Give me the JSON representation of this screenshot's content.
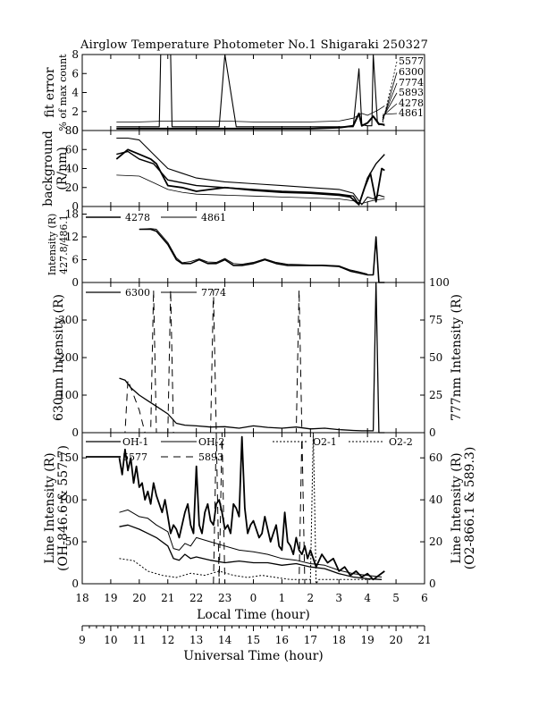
{
  "title": "Airglow Temperature Photometer No.1  Shigaraki  250327",
  "chart_data": [
    {
      "panel": "fit_error",
      "type": "line",
      "ylabel_lines": [
        "fit error",
        "% of max count"
      ],
      "ylim": [
        0,
        8
      ],
      "yticks": [
        "0",
        "2",
        "4",
        "6",
        "8"
      ],
      "legend_labels": [
        "5577",
        "6300",
        "7774",
        "5893",
        "4278",
        "4861"
      ],
      "series": [
        {
          "width": 1.1,
          "x": [
            19.2,
            20.0,
            20.7,
            20.75,
            21.1,
            21.15,
            21.6,
            21.9,
            22.0,
            22.8,
            23.0,
            23.4,
            23.6,
            23.9,
            24.0,
            25.0,
            26.0,
            27.0,
            27.2,
            27.5,
            27.7,
            27.8,
            28.0,
            28.15,
            28.2,
            28.35,
            28.4,
            28.5,
            28.6
          ],
          "y": [
            0.4,
            0.4,
            0.4,
            8.0,
            8.0,
            0.4,
            0.4,
            0.4,
            0.4,
            0.4,
            8.0,
            0.4,
            0.4,
            0.4,
            0.4,
            0.4,
            0.4,
            0.4,
            0.4,
            0.4,
            6.5,
            0.6,
            0.5,
            0.5,
            8.0,
            0.8,
            0.6,
            0.7,
            0.5
          ]
        },
        {
          "width": 0.8,
          "x": [
            19.2,
            20.0,
            21.0,
            22.0,
            23.0,
            24.0,
            25.0,
            26.0,
            27.0,
            27.5,
            27.8,
            28.0,
            28.2,
            28.4,
            28.6
          ],
          "y": [
            0.9,
            0.9,
            1.0,
            1.0,
            1.0,
            0.9,
            0.9,
            0.9,
            1.0,
            1.3,
            1.8,
            1.6,
            1.9,
            2.2,
            2.6
          ]
        },
        {
          "width": 2.0,
          "x": [
            19.2,
            20.0,
            21.0,
            22.0,
            23.0,
            24.0,
            25.0,
            26.0,
            27.0,
            27.5,
            27.7,
            27.8,
            28.0,
            28.2,
            28.4,
            28.6
          ],
          "y": [
            0.2,
            0.2,
            0.2,
            0.2,
            0.2,
            0.2,
            0.2,
            0.2,
            0.3,
            0.5,
            1.8,
            0.5,
            0.8,
            1.5,
            0.7,
            0.6
          ]
        }
      ]
    },
    {
      "panel": "background",
      "type": "line",
      "ylabel_lines": [
        "background",
        "(R/nm)"
      ],
      "ylim": [
        0,
        80
      ],
      "yticks": [
        "0",
        "20",
        "40",
        "60",
        "80"
      ],
      "series": [
        {
          "width": 1.1,
          "x": [
            19.2,
            19.6,
            20.0,
            20.5,
            21.0,
            21.5,
            22.0,
            22.5,
            23.0,
            24.0,
            25.0,
            26.0,
            27.0,
            27.5,
            27.8,
            28.0,
            28.2,
            28.4,
            28.6
          ],
          "y": [
            72,
            72,
            70,
            55,
            40,
            35,
            30,
            28,
            26,
            24,
            22,
            20,
            18,
            14,
            2,
            10,
            8,
            12,
            10
          ]
        },
        {
          "width": 1.8,
          "x": [
            19.2,
            19.6,
            20.0,
            20.4,
            20.6,
            21.0,
            21.5,
            22.0,
            22.5,
            23.0,
            24.0,
            25.0,
            26.0,
            27.0,
            27.4,
            27.7,
            27.9,
            28.1,
            28.3,
            28.5,
            28.6
          ],
          "y": [
            50,
            60,
            55,
            50,
            45,
            22,
            20,
            16,
            18,
            20,
            17,
            15,
            14,
            12,
            10,
            2,
            20,
            35,
            5,
            40,
            38
          ]
        },
        {
          "width": 0.8,
          "x": [
            19.2,
            20.0,
            20.5,
            21.0,
            21.5,
            22.0,
            23.0,
            24.0,
            25.0,
            26.0,
            27.0,
            27.5,
            27.8,
            28.0,
            28.3,
            28.6
          ],
          "y": [
            33,
            32,
            25,
            18,
            15,
            13,
            12,
            11,
            10,
            9,
            8,
            6,
            3,
            5,
            7,
            8
          ]
        },
        {
          "width": 1.4,
          "x": [
            19.2,
            19.6,
            20.0,
            20.5,
            21.0,
            21.5,
            22.0,
            23.0,
            24.0,
            25.0,
            26.0,
            27.0,
            27.5,
            27.7,
            28.0,
            28.3,
            28.6
          ],
          "y": [
            55,
            58,
            50,
            45,
            28,
            25,
            22,
            20,
            18,
            16,
            15,
            13,
            11,
            2,
            30,
            45,
            55
          ]
        }
      ]
    },
    {
      "panel": "intensity_427_486",
      "type": "line",
      "ylabel_lines": [
        "Intensity (R)",
        "427.8/486.1"
      ],
      "ylim": [
        0,
        20
      ],
      "yticks": [
        "0",
        "6",
        "12",
        "18"
      ],
      "legend_labels": [
        "4278",
        "4861"
      ],
      "series": [
        {
          "name": "4278",
          "width": 1.6,
          "x": [
            20.0,
            20.4,
            20.6,
            21.0,
            21.3,
            21.5,
            21.8,
            22.1,
            22.4,
            22.7,
            23.0,
            23.3,
            23.6,
            24.0,
            24.4,
            24.8,
            25.2,
            25.6,
            26.0,
            26.4,
            27.0,
            27.4,
            27.7,
            28.0,
            28.2,
            28.3,
            28.4,
            28.5,
            28.6
          ],
          "y": [
            14,
            14,
            13.5,
            10,
            6,
            5,
            5,
            6,
            5,
            5,
            6,
            4.5,
            4.5,
            5,
            6,
            5,
            4.5,
            4.5,
            4.5,
            4.5,
            4.2,
            3,
            2.5,
            2,
            2,
            12,
            0,
            0,
            0
          ]
        },
        {
          "name": "4861",
          "width": 0.9,
          "x": [
            20.0,
            20.4,
            20.6,
            21.0,
            21.3,
            21.5,
            21.8,
            22.1,
            22.4,
            22.7,
            23.0,
            23.3,
            23.6,
            24.0,
            24.4,
            24.8,
            25.2,
            25.6,
            26.0,
            26.4,
            27.0,
            27.4,
            27.7,
            28.0
          ],
          "y": [
            14,
            14.2,
            14,
            10.5,
            6.5,
            5.2,
            5.5,
            6.2,
            5.4,
            5.3,
            6.3,
            5.0,
            4.8,
            5.3,
            6.2,
            5.3,
            4.8,
            4.7,
            4.6,
            4.6,
            4.4,
            3.3,
            2.8,
            2.2
          ]
        }
      ]
    },
    {
      "panel": "intensity_630_777",
      "type": "line",
      "ylabel_left": "630nm Intensity (R)",
      "ylabel_right": "777nm Intensity (R)",
      "ylim_left": [
        0,
        400
      ],
      "ylim_right": [
        0,
        100
      ],
      "yticks_left": [
        "0",
        "100",
        "200",
        "300"
      ],
      "yticks_right": [
        "0",
        "25",
        "50",
        "75",
        "100"
      ],
      "legend_labels": [
        "6300",
        "7774"
      ],
      "series": [
        {
          "name": "6300",
          "width": 1.3,
          "x": [
            19.3,
            19.5,
            19.7,
            20.0,
            20.3,
            20.6,
            21.0,
            21.3,
            21.6,
            22.0,
            22.5,
            23.0,
            23.5,
            24.0,
            24.5,
            25.0,
            25.5,
            26.0,
            26.5,
            27.0,
            27.5,
            27.8,
            28.0,
            28.2,
            28.3,
            28.4,
            28.5,
            28.6
          ],
          "y": [
            145,
            140,
            120,
            100,
            85,
            70,
            50,
            25,
            20,
            18,
            15,
            16,
            12,
            18,
            14,
            12,
            15,
            10,
            12,
            8,
            6,
            5,
            5,
            5,
            400,
            0,
            0,
            0
          ]
        },
        {
          "name": "7774",
          "width": 1.0,
          "dash": "8,6",
          "x": [
            19.3,
            19.5,
            19.6,
            19.8,
            20.0,
            20.2,
            20.4,
            20.5,
            20.6,
            21.0,
            21.1,
            21.2,
            21.5,
            22.0,
            22.5,
            22.6,
            22.7,
            23.0,
            24.0,
            24.5,
            25.0,
            25.5,
            25.6,
            25.7,
            26.0,
            26.5,
            27.0,
            27.5
          ],
          "y": [
            0,
            0,
            35,
            25,
            15,
            0,
            0,
            95,
            0,
            0,
            95,
            0,
            0,
            0,
            0,
            95,
            0,
            0,
            0,
            0,
            0,
            0,
            95,
            0,
            0,
            0,
            0,
            0
          ]
        }
      ]
    },
    {
      "panel": "line_intensity",
      "type": "line",
      "ylabel_left": "Line Intensity (R)",
      "ylabel_left_sub": "(OH-846.6 & 557.7)",
      "ylabel_right": "Line Intensity (R)",
      "ylabel_right_sub": "(O2-866.1 & 589.3)",
      "ylim_left": [
        0,
        180
      ],
      "ylim_right": [
        0,
        72
      ],
      "yticks_left": [
        "0",
        "50",
        "100",
        "150"
      ],
      "yticks_right": [
        "0",
        "20",
        "40",
        "60"
      ],
      "legend_labels": [
        "OH-1",
        "OH-2",
        "O2-1",
        "O2-2",
        "5577",
        "5893"
      ],
      "xlabel": "Local Time (hour)",
      "xticks": [
        "18",
        "19",
        "20",
        "21",
        "22",
        "23",
        "0",
        "1",
        "2",
        "3",
        "4",
        "5",
        "6"
      ],
      "x2label": "Universal Time (hour)",
      "x2ticks": [
        "9",
        "10",
        "11",
        "12",
        "13",
        "14",
        "15",
        "16",
        "17",
        "18",
        "19",
        "20",
        "21"
      ],
      "series": [
        {
          "name": "5577",
          "width": 1.8,
          "x": [
            19.3,
            19.4,
            19.5,
            19.6,
            19.7,
            19.8,
            19.9,
            20.0,
            20.1,
            20.2,
            20.3,
            20.4,
            20.5,
            20.6,
            20.7,
            20.8,
            20.9,
            21.0,
            21.1,
            21.2,
            21.3,
            21.4,
            21.5,
            21.6,
            21.7,
            21.8,
            21.9,
            22.0,
            22.1,
            22.2,
            22.3,
            22.4,
            22.5,
            22.6,
            22.7,
            22.8,
            22.9,
            23.0,
            23.1,
            23.2,
            23.3,
            23.4,
            23.5,
            23.6,
            23.7,
            23.8,
            23.9,
            24.0,
            24.1,
            24.2,
            24.3,
            24.4,
            24.5,
            24.6,
            24.7,
            24.8,
            24.9,
            25.0,
            25.1,
            25.2,
            25.3,
            25.4,
            25.5,
            25.6,
            25.7,
            25.8,
            25.9,
            26.0,
            26.2,
            26.4,
            26.6,
            26.8,
            27.0,
            27.2,
            27.4,
            27.6,
            27.8,
            28.0,
            28.2,
            28.4,
            28.6
          ],
          "y": [
            150,
            130,
            160,
            135,
            150,
            120,
            140,
            115,
            120,
            100,
            110,
            95,
            120,
            105,
            95,
            85,
            100,
            80,
            60,
            70,
            65,
            55,
            70,
            85,
            95,
            70,
            60,
            140,
            70,
            60,
            85,
            95,
            75,
            70,
            95,
            100,
            85,
            65,
            70,
            60,
            95,
            90,
            80,
            175,
            90,
            60,
            70,
            75,
            65,
            55,
            60,
            80,
            65,
            50,
            60,
            70,
            45,
            40,
            85,
            50,
            45,
            35,
            55,
            40,
            35,
            45,
            30,
            40,
            20,
            35,
            25,
            30,
            15,
            20,
            10,
            15,
            8,
            12,
            5,
            10,
            15
          ]
        },
        {
          "name": "OH-1",
          "width": 1.3,
          "x": [
            19.3,
            19.6,
            20.0,
            20.3,
            20.6,
            21.0,
            21.2,
            21.4,
            21.6,
            21.8,
            22.0,
            22.5,
            23.0,
            23.5,
            24.0,
            24.5,
            25.0,
            25.5,
            26.0,
            26.5,
            27.0,
            27.5,
            28.0,
            28.5
          ],
          "y": [
            68,
            70,
            65,
            60,
            55,
            45,
            30,
            28,
            35,
            30,
            32,
            28,
            25,
            27,
            25,
            25,
            22,
            24,
            20,
            18,
            12,
            8,
            6,
            5
          ]
        },
        {
          "name": "OH-2",
          "width": 1.0,
          "x": [
            19.3,
            19.6,
            20.0,
            20.3,
            20.6,
            21.0,
            21.2,
            21.4,
            21.6,
            21.8,
            22.0,
            22.5,
            23.0,
            23.5,
            24.0,
            24.5,
            25.0,
            25.5,
            26.0,
            26.5,
            27.0,
            27.5,
            28.0,
            28.5
          ],
          "y": [
            85,
            88,
            80,
            78,
            70,
            62,
            42,
            40,
            48,
            45,
            55,
            50,
            45,
            40,
            38,
            35,
            30,
            28,
            24,
            22,
            16,
            12,
            10,
            8
          ]
        },
        {
          "name": "O2-1",
          "width": 1.0,
          "dash": "2,2",
          "x": [
            19.3,
            19.8,
            20.3,
            20.8,
            21.3,
            21.8,
            22.3,
            22.8,
            23.3,
            23.8,
            24.3,
            24.8,
            25.3,
            25.8,
            26.0,
            26.1,
            26.2,
            26.3,
            26.8,
            27.3,
            27.8,
            28.3
          ],
          "y": [
            12,
            11,
            6,
            4,
            3,
            5,
            4,
            6,
            4,
            3,
            4,
            3,
            2,
            2,
            2,
            180,
            0,
            2,
            2,
            2,
            2,
            2
          ]
        },
        {
          "name": "5893",
          "width": 1.0,
          "dash": "8,6",
          "x": [
            22.6,
            22.7,
            22.8,
            22.9,
            23.0,
            25.6,
            25.7,
            25.8
          ],
          "y": [
            0,
            100,
            0,
            100,
            0,
            0,
            95,
            0
          ]
        }
      ]
    }
  ]
}
